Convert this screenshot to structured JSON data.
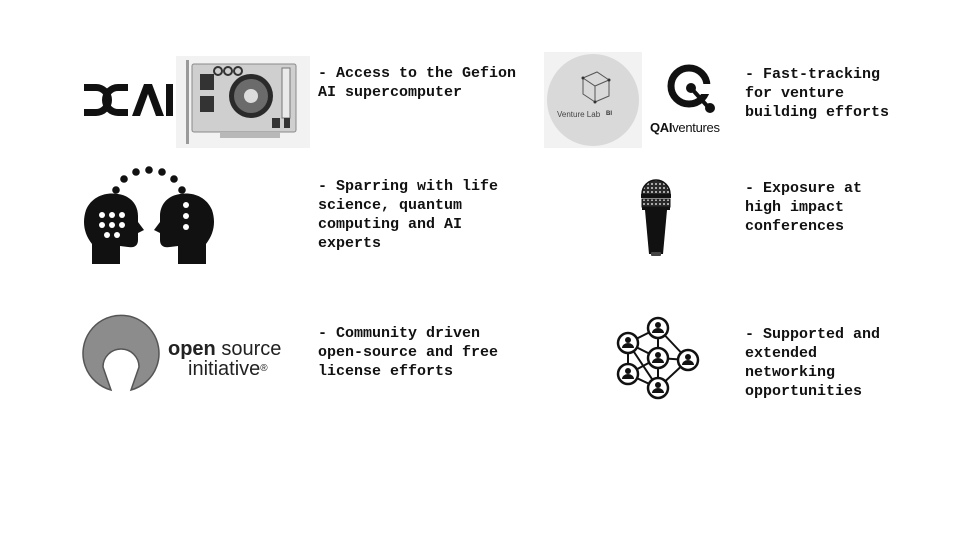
{
  "items": [
    {
      "text": "- Access to the Gefion\nAI supercomputer"
    },
    {
      "text": "- Fast-tracking\nfor venture\nbuilding efforts"
    },
    {
      "text": "- Sparring with life\nscience, quantum\ncomputing and AI\nexperts"
    },
    {
      "text": "- Exposure at\nhigh impact\nconferences"
    },
    {
      "text": "- Community driven\nopen-source and free\nlicense efforts"
    },
    {
      "text": "- Supported and\nextended\nnetworking\nopportunities"
    }
  ],
  "logos": {
    "dcai": "DCAI",
    "venture_lab": "Venture Lab",
    "venture_lab_sub": "BI",
    "qai_prefix": "QAI",
    "qai_suffix": "ventures",
    "osi_line1_bold": "open",
    "osi_line1_rest": " source",
    "osi_line2": "initiative",
    "osi_reg": "®"
  },
  "icons": [
    "gpu-card-icon",
    "head-to-head-icon",
    "microphone-icon",
    "network-people-icon"
  ]
}
